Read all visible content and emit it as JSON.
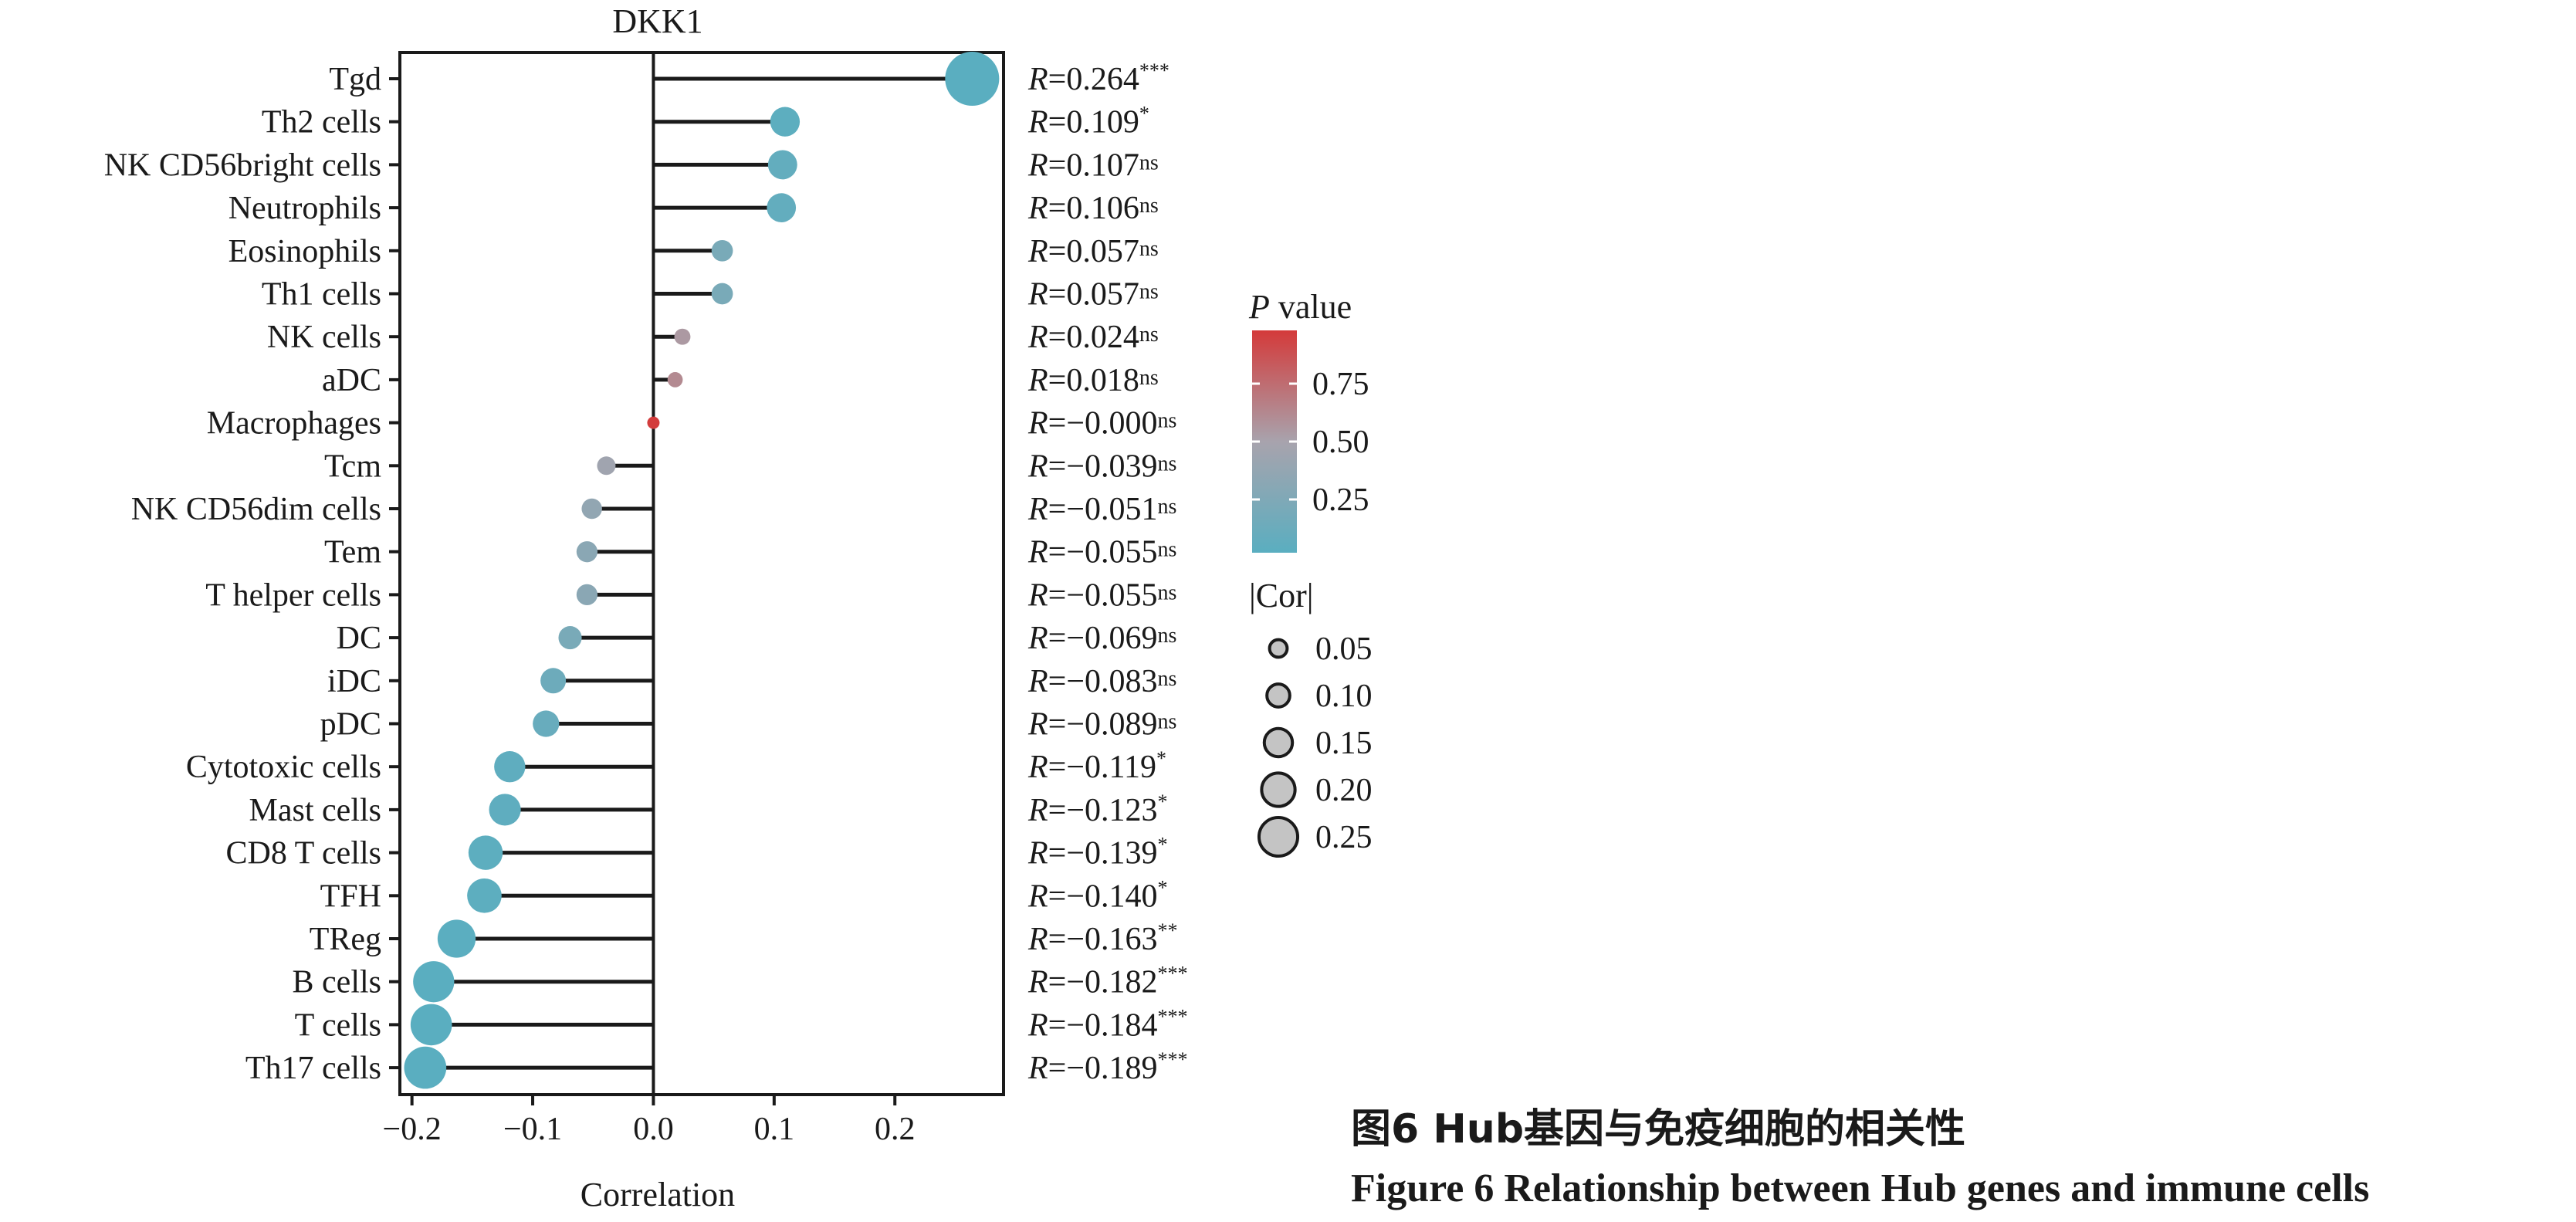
{
  "chart_data": {
    "type": "lollipop",
    "title": "DKK1",
    "xlabel": "Correlation",
    "xlim": [
      -0.21,
      0.29
    ],
    "xticks": [
      -0.2,
      -0.1,
      0.0,
      0.1,
      0.2
    ],
    "xtick_labels": [
      "−0.2",
      "−0.1",
      "0.0",
      "0.1",
      "0.2"
    ],
    "categories": [
      "Tgd",
      "Th2 cells",
      "NK CD56bright cells",
      "Neutrophils",
      "Eosinophils",
      "Th1 cells",
      "NK cells",
      "aDC",
      "Macrophages",
      "Tcm",
      "NK CD56dim cells",
      "Tem",
      "T helper cells",
      "DC",
      "iDC",
      "pDC",
      "Cytotoxic cells",
      "Mast cells",
      "CD8 T cells",
      "TFH",
      "TReg",
      "B cells",
      "T cells",
      "Th17 cells"
    ],
    "values": [
      0.264,
      0.109,
      0.107,
      0.106,
      0.057,
      0.057,
      0.024,
      0.018,
      -0.0,
      -0.039,
      -0.051,
      -0.055,
      -0.055,
      -0.069,
      -0.083,
      -0.089,
      -0.119,
      -0.123,
      -0.139,
      -0.14,
      -0.163,
      -0.182,
      -0.184,
      -0.189
    ],
    "p_values": [
      0.0001,
      0.02,
      0.06,
      0.06,
      0.2,
      0.2,
      0.55,
      0.62,
      0.99,
      0.45,
      0.36,
      0.31,
      0.31,
      0.2,
      0.12,
      0.09,
      0.03,
      0.03,
      0.02,
      0.02,
      0.005,
      0.0005,
      0.0005,
      0.0005
    ],
    "annotations": [
      {
        "r": "0.264",
        "sig": "***"
      },
      {
        "r": "0.109",
        "sig": "*"
      },
      {
        "r": "0.107",
        "sig": "ns"
      },
      {
        "r": "0.106",
        "sig": "ns"
      },
      {
        "r": "0.057",
        "sig": "ns"
      },
      {
        "r": "0.057",
        "sig": "ns"
      },
      {
        "r": "0.024",
        "sig": "ns"
      },
      {
        "r": "0.018",
        "sig": "ns"
      },
      {
        "r": "−0.000",
        "sig": "ns"
      },
      {
        "r": "−0.039",
        "sig": "ns"
      },
      {
        "r": "−0.051",
        "sig": "ns"
      },
      {
        "r": "−0.055",
        "sig": "ns"
      },
      {
        "r": "−0.055",
        "sig": "ns"
      },
      {
        "r": "−0.069",
        "sig": "ns"
      },
      {
        "r": "−0.083",
        "sig": "ns"
      },
      {
        "r": "−0.089",
        "sig": "ns"
      },
      {
        "r": "−0.119",
        "sig": "*"
      },
      {
        "r": "−0.123",
        "sig": "*"
      },
      {
        "r": "−0.139",
        "sig": "*"
      },
      {
        "r": "−0.140",
        "sig": "*"
      },
      {
        "r": "−0.163",
        "sig": "**"
      },
      {
        "r": "−0.182",
        "sig": "***"
      },
      {
        "r": "−0.184",
        "sig": "***"
      },
      {
        "r": "−0.189",
        "sig": "***"
      }
    ],
    "r_prefix": "R",
    "legend": {
      "color_title_italic": "P",
      "color_title_rest": " value",
      "color_ticks": [
        0.75,
        0.5,
        0.25
      ],
      "color_tick_labels": [
        "0.75",
        "0.50",
        "0.25"
      ],
      "color_low": "#5aaec0",
      "color_mid": "#a8a3ad",
      "color_high": "#d43a3a",
      "size_title": "|Cor|",
      "size_values": [
        0.05,
        0.1,
        0.15,
        0.2,
        0.25
      ],
      "size_labels": [
        "0.05",
        "0.10",
        "0.15",
        "0.20",
        "0.25"
      ],
      "placement": "right"
    }
  },
  "caption": {
    "cn": "图6 Hub基因与免疫细胞的相关性",
    "en": "Figure 6 Relationship between Hub genes and immune cells"
  }
}
